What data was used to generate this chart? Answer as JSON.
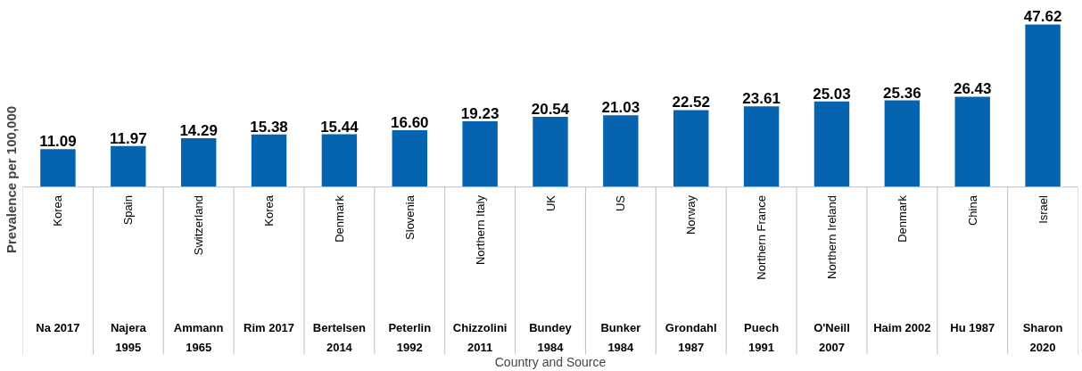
{
  "chart_data": {
    "type": "bar",
    "xlabel": "Country and Source",
    "ylabel": "Prevalence per 100,000",
    "categories": [
      "Na 2017",
      "Najera 1995",
      "Ammann 1965",
      "Rim 2017",
      "Bertelsen 2014",
      "Peterlin 1992",
      "Chizzolini 2011",
      "Bundey 1984",
      "Bunker 1984",
      "Grondahl 1987",
      "Puech 1991",
      "O'Neill 2007",
      "Haim 2002",
      "Hu 1987",
      "Sharon 2020"
    ],
    "annotations": [
      "Korea",
      "Spain",
      "Switzerland",
      "Korea",
      "Denmark",
      "Slovenia",
      "Northern Italy",
      "UK",
      "US",
      "Norway",
      "Northern France",
      "Northern Ireland",
      "Denmark",
      "China",
      "Israel"
    ],
    "values": [
      11.09,
      11.97,
      14.29,
      15.38,
      15.44,
      16.6,
      19.23,
      20.54,
      21.03,
      22.52,
      23.61,
      25.03,
      25.36,
      26.43,
      47.62
    ],
    "value_labels": [
      "11.09",
      "11.97",
      "14.29",
      "15.38",
      "15.44",
      "16.60",
      "19.23",
      "20.54",
      "21.03",
      "22.52",
      "23.61",
      "25.03",
      "25.36",
      "26.43",
      "47.62"
    ],
    "color": "#0563b0"
  }
}
